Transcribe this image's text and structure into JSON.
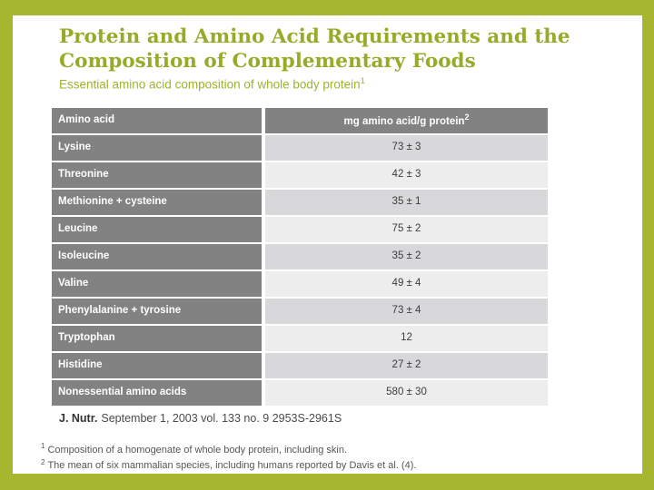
{
  "colors": {
    "frame_green": "#a6b72f",
    "title_green": "#95ac28",
    "table_header_gray": "#828282",
    "row_band_dark": "#d8d8da",
    "row_band_light": "#ededee",
    "citation_text": "#4a4a4a",
    "footnote_text": "#565656"
  },
  "header": {
    "title": "Protein and Amino Acid Requirements and the Composition of Complementary Foods",
    "subtitle": "Essential amino acid composition of whole body protein",
    "subtitle_superscript": "1"
  },
  "table": {
    "columns": [
      {
        "label": "Amino acid",
        "superscript": ""
      },
      {
        "label": "mg amino acid/g protein",
        "superscript": "2"
      }
    ],
    "rows": [
      {
        "name": "Lysine",
        "value": "73 ± 3"
      },
      {
        "name": "Threonine",
        "value": "42 ± 3"
      },
      {
        "name": "Methionine + cysteine",
        "value": "35 ± 1"
      },
      {
        "name": "Leucine",
        "value": "75 ± 2"
      },
      {
        "name": "Isoleucine",
        "value": "35 ± 2"
      },
      {
        "name": "Valine",
        "value": "49 ± 4"
      },
      {
        "name": "Phenylalanine + tyrosine",
        "value": "73 ± 4"
      },
      {
        "name": "Tryptophan",
        "value": "12"
      },
      {
        "name": "Histidine",
        "value": "27 ± 2"
      },
      {
        "name": "Nonessential amino acids",
        "value": "580 ± 30"
      }
    ]
  },
  "citation": {
    "journal": "J. Nutr.",
    "details": "September 1, 2003 vol. 133 no. 9 2953S-2961S"
  },
  "footnotes": [
    {
      "sup": "1",
      "text": "Composition of a homogenate of whole body protein, including skin."
    },
    {
      "sup": "2",
      "text": "The mean of six mammalian species, including humans reported by Davis et al. (4)."
    }
  ]
}
